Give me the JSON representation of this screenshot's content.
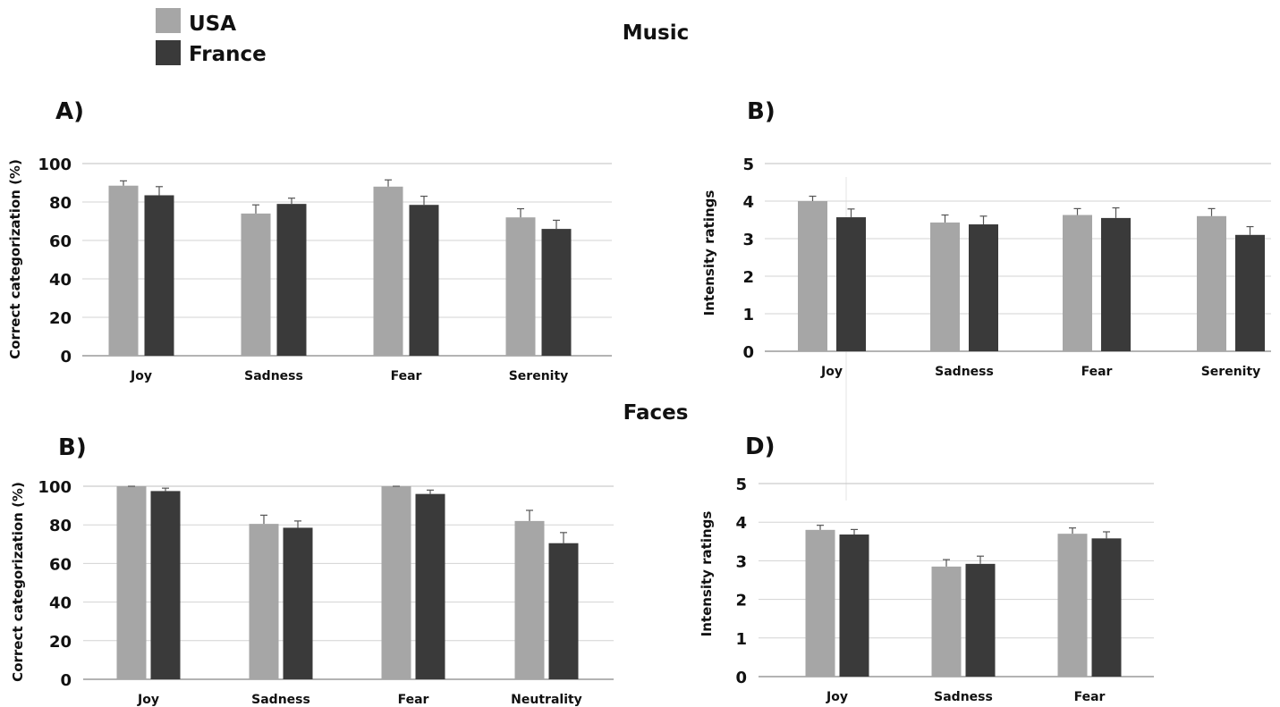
{
  "legend": {
    "items": [
      {
        "label": "USA",
        "color": "#a6a6a6"
      },
      {
        "label": "France",
        "color": "#3a3a3a"
      }
    ]
  },
  "sections": {
    "music": "Music",
    "faces": "Faces"
  },
  "colors": {
    "usa": "#a6a6a6",
    "france": "#3a3a3a",
    "grid": "#d0d0d0",
    "axis": "#bdbdbd",
    "text": "#111111"
  },
  "chart_data": [
    {
      "panel": "A)",
      "type": "bar",
      "ylabel": "Correct categorization (%)",
      "ylim": [
        0,
        100
      ],
      "yticks": [
        0,
        20,
        40,
        60,
        80,
        100
      ],
      "grid": true,
      "categories": [
        "Joy",
        "Sadness",
        "Fear",
        "Serenity"
      ],
      "series": [
        {
          "name": "USA",
          "values": [
            88.5,
            74,
            88,
            72
          ],
          "errors": [
            2.5,
            4.5,
            3.5,
            4.5
          ]
        },
        {
          "name": "France",
          "values": [
            83.5,
            79,
            78.5,
            66
          ],
          "errors": [
            4.5,
            3,
            4.5,
            4.5
          ]
        }
      ]
    },
    {
      "panel": "B)",
      "type": "bar",
      "ylabel": "Intensity ratings",
      "ylim": [
        0,
        5
      ],
      "yticks": [
        0,
        1,
        2,
        3,
        4,
        5
      ],
      "grid": true,
      "categories": [
        "Joy",
        "Sadness",
        "Fear",
        "Serenity"
      ],
      "series": [
        {
          "name": "USA",
          "values": [
            4.0,
            3.43,
            3.63,
            3.6
          ],
          "errors": [
            0.13,
            0.2,
            0.17,
            0.2
          ]
        },
        {
          "name": "France",
          "values": [
            3.57,
            3.38,
            3.55,
            3.1
          ],
          "errors": [
            0.22,
            0.22,
            0.27,
            0.22
          ]
        }
      ]
    },
    {
      "panel": "B)",
      "type": "bar",
      "ylabel": "Correct categorization (%)",
      "ylim": [
        0,
        100
      ],
      "yticks": [
        0,
        20,
        40,
        60,
        80,
        100
      ],
      "grid": true,
      "categories": [
        "Joy",
        "Sadness",
        "Fear",
        "Neutrality"
      ],
      "series": [
        {
          "name": "USA",
          "values": [
            100,
            80.5,
            100,
            82
          ],
          "errors": [
            0,
            4.5,
            0,
            5.5
          ]
        },
        {
          "name": "France",
          "values": [
            97.5,
            78.5,
            96,
            70.5
          ],
          "errors": [
            1.5,
            3.5,
            2,
            5.5
          ]
        }
      ]
    },
    {
      "panel": "D)",
      "type": "bar",
      "ylabel": "Intensity ratings",
      "ylim": [
        0,
        5
      ],
      "yticks": [
        0,
        1,
        2,
        3,
        4,
        5
      ],
      "grid": true,
      "categories": [
        "Joy",
        "Sadness",
        "Fear"
      ],
      "series": [
        {
          "name": "USA",
          "values": [
            3.8,
            2.85,
            3.7
          ],
          "errors": [
            0.12,
            0.18,
            0.15
          ]
        },
        {
          "name": "France",
          "values": [
            3.68,
            2.92,
            3.58
          ],
          "errors": [
            0.13,
            0.2,
            0.17
          ]
        }
      ]
    }
  ]
}
